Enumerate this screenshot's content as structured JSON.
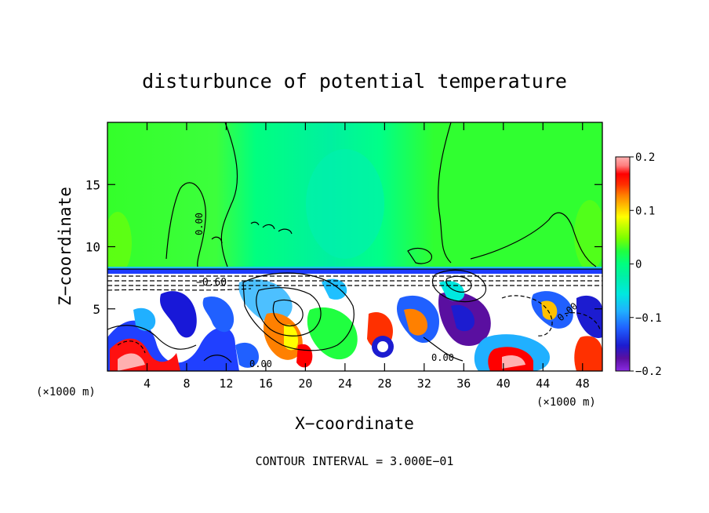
{
  "chart_data": {
    "type": "heatmap",
    "title": "disturbunce of potential temperature",
    "xlabel": "X−coordinate",
    "ylabel": "Z−coordinate",
    "x_unit_left": "(×1000 m)",
    "x_unit_right": "(×1000 m)",
    "footer": "CONTOUR INTERVAL = 3.000E−01",
    "xlim": [
      0,
      50
    ],
    "ylim": [
      0,
      20
    ],
    "x_ticks": [
      "4",
      "8",
      "12",
      "16",
      "20",
      "24",
      "28",
      "32",
      "36",
      "40",
      "44",
      "48"
    ],
    "x_tick_values": [
      4,
      8,
      12,
      16,
      20,
      24,
      28,
      32,
      36,
      40,
      44,
      48
    ],
    "y_ticks": [
      "5",
      "10",
      "15"
    ],
    "y_tick_values": [
      5,
      10,
      15
    ],
    "colorbar": {
      "range": [
        -0.2,
        0.2
      ],
      "tick_labels": [
        "0.2",
        "0.1",
        "0",
        "−0.1",
        "−0.2"
      ],
      "tick_values": [
        0.2,
        0.1,
        0,
        -0.1,
        -0.2
      ],
      "colors": [
        "#8a2be2",
        "#5a0fa0",
        "#1c1cd0",
        "#2060ff",
        "#20b0ff",
        "#00e8e0",
        "#00f0a8",
        "#00ff80",
        "#20ff40",
        "#7bff00",
        "#c8ff00",
        "#ffff00",
        "#ffc000",
        "#ff8000",
        "#ff3000",
        "#ff0000",
        "#ff8080",
        "#ffb0b0"
      ]
    },
    "contour_labels": [
      "0.00",
      "0.00",
      "−0.60",
      "0.00",
      "0.00"
    ],
    "features": {
      "upper_layer_value": 0.03,
      "central_plume_x": [
        16,
        30
      ],
      "central_plume_value": -0.02,
      "inversion_height": 8,
      "lower_layer": "alternating ±0.2 turbulent structures"
    }
  }
}
